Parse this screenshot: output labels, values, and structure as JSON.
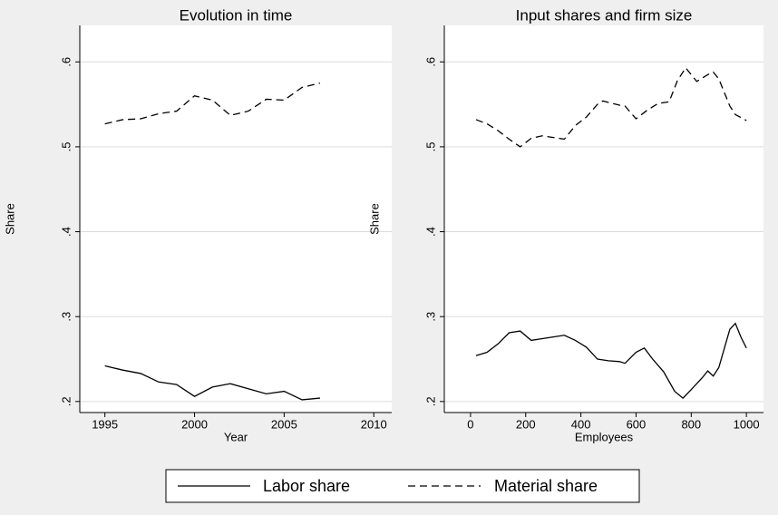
{
  "chart_data": [
    {
      "type": "line",
      "title": "Evolution in time",
      "xlabel": "Year",
      "ylabel": "Share",
      "x": [
        1995,
        1996,
        1997,
        1998,
        1999,
        2000,
        2001,
        2002,
        2003,
        2004,
        2005,
        2006,
        2007
      ],
      "series": [
        {
          "name": "Labor share",
          "color": "#000000",
          "style": "solid",
          "values": [
            0.242,
            0.237,
            0.233,
            0.223,
            0.22,
            0.206,
            0.217,
            0.221,
            0.215,
            0.209,
            0.212,
            0.202,
            0.204
          ]
        },
        {
          "name": "Material share",
          "color": "#000000",
          "style": "dashed",
          "values": [
            0.527,
            0.532,
            0.533,
            0.539,
            0.542,
            0.56,
            0.555,
            0.537,
            0.542,
            0.556,
            0.555,
            0.57,
            0.575
          ]
        }
      ],
      "xlim": [
        1993.6,
        2011
      ],
      "xticks": [
        1995,
        2000,
        2005,
        2010
      ],
      "ylim": [
        0.187,
        0.643
      ],
      "yticks": [
        {
          "value": 0.2,
          "label": ".2"
        },
        {
          "value": 0.3,
          "label": ".3"
        },
        {
          "value": 0.4,
          "label": ".4"
        },
        {
          "value": 0.5,
          "label": ".5"
        },
        {
          "value": 0.6,
          "label": ".6"
        }
      ],
      "grid": true
    },
    {
      "type": "line",
      "title": "Input shares and firm size",
      "xlabel": "Employees",
      "ylabel": "Share",
      "series": [
        {
          "color": "#000000",
          "style": "solid",
          "x": [
            20,
            60,
            100,
            140,
            180,
            220,
            260,
            300,
            340,
            380,
            420,
            460,
            500,
            540,
            560,
            600,
            630,
            660,
            700,
            740,
            770,
            800,
            840,
            860,
            880,
            900,
            940,
            960,
            980,
            1000
          ],
          "values": [
            0.254,
            0.258,
            0.268,
            0.281,
            0.283,
            0.272,
            0.274,
            0.276,
            0.278,
            0.272,
            0.264,
            0.25,
            0.248,
            0.247,
            0.245,
            0.258,
            0.263,
            0.25,
            0.235,
            0.212,
            0.204,
            0.214,
            0.228,
            0.236,
            0.23,
            0.24,
            0.285,
            0.292,
            0.276,
            0.263
          ]
        },
        {
          "color": "#000000",
          "style": "dashed",
          "x": [
            20,
            60,
            100,
            140,
            180,
            220,
            260,
            300,
            340,
            380,
            420,
            460,
            480,
            540,
            560,
            600,
            640,
            680,
            720,
            750,
            780,
            820,
            860,
            880,
            900,
            940,
            960,
            1000
          ],
          "values": [
            0.532,
            0.527,
            0.519,
            0.509,
            0.5,
            0.51,
            0.513,
            0.511,
            0.509,
            0.525,
            0.535,
            0.55,
            0.554,
            0.549,
            0.548,
            0.533,
            0.543,
            0.551,
            0.553,
            0.578,
            0.593,
            0.577,
            0.585,
            0.588,
            0.58,
            0.548,
            0.538,
            0.531
          ]
        }
      ],
      "xlim": [
        -95,
        1062
      ],
      "xticks": [
        0,
        200,
        400,
        600,
        800,
        1000
      ],
      "ylim": [
        0.187,
        0.643
      ],
      "yticks": [
        {
          "value": 0.2,
          "label": ".2"
        },
        {
          "value": 0.3,
          "label": ".3"
        },
        {
          "value": 0.4,
          "label": ".4"
        },
        {
          "value": 0.5,
          "label": ".5"
        },
        {
          "value": 0.6,
          "label": ".6"
        }
      ],
      "grid": true
    }
  ]
}
